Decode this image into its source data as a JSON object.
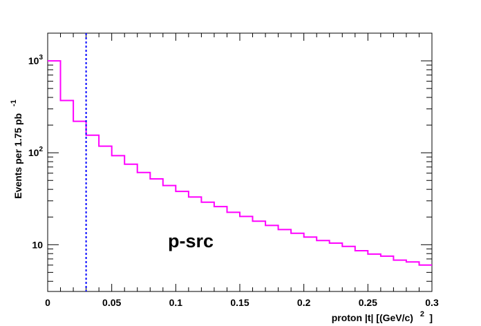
{
  "chart_data": {
    "type": "histogram",
    "title": "",
    "xlabel": "proton |t| [(GeV/c)",
    "xlabel_superscript": "2",
    "xlabel_close": "]",
    "ylabel": "Events per 1.75 pb",
    "ylabel_superscript": "-1",
    "annotation": "p-src",
    "x_range": [
      0,
      0.3
    ],
    "y_range": [
      3.1,
      2000
    ],
    "y_scale": "log",
    "grid": false,
    "bin_edges": [
      0,
      0.01,
      0.02,
      0.03,
      0.04,
      0.05,
      0.06,
      0.07,
      0.08,
      0.09,
      0.1,
      0.11,
      0.12,
      0.13,
      0.14,
      0.15,
      0.16,
      0.17,
      0.18,
      0.19,
      0.2,
      0.21,
      0.22,
      0.23,
      0.24,
      0.25,
      0.26,
      0.27,
      0.28,
      0.29,
      0.3
    ],
    "values": [
      1000,
      370,
      220,
      155,
      118,
      93,
      75,
      61,
      52,
      44,
      38,
      33,
      29,
      26,
      22.5,
      20.3,
      18,
      16.2,
      14.6,
      13.3,
      12.1,
      11.1,
      10.4,
      9.6,
      8.6,
      7.9,
      7.5,
      6.8,
      6.5,
      6.0
    ],
    "cut_line_x": 0.03,
    "x_ticks": [
      {
        "value": 0,
        "label": "0"
      },
      {
        "value": 0.05,
        "label": "0.05"
      },
      {
        "value": 0.1,
        "label": "0.1"
      },
      {
        "value": 0.15,
        "label": "0.15"
      },
      {
        "value": 0.2,
        "label": "0.2"
      },
      {
        "value": 0.25,
        "label": "0.25"
      },
      {
        "value": 0.3,
        "label": "0.3"
      }
    ],
    "y_ticks": [
      {
        "value": 10,
        "base": "10",
        "exp": ""
      },
      {
        "value": 100,
        "base": "10",
        "exp": "2"
      },
      {
        "value": 1000,
        "base": "10",
        "exp": "3"
      }
    ],
    "colors": {
      "histogram": "#ff00ff",
      "cut_line": "#0000ff",
      "annotation": "#ff00ff",
      "axis": "#000000"
    }
  }
}
